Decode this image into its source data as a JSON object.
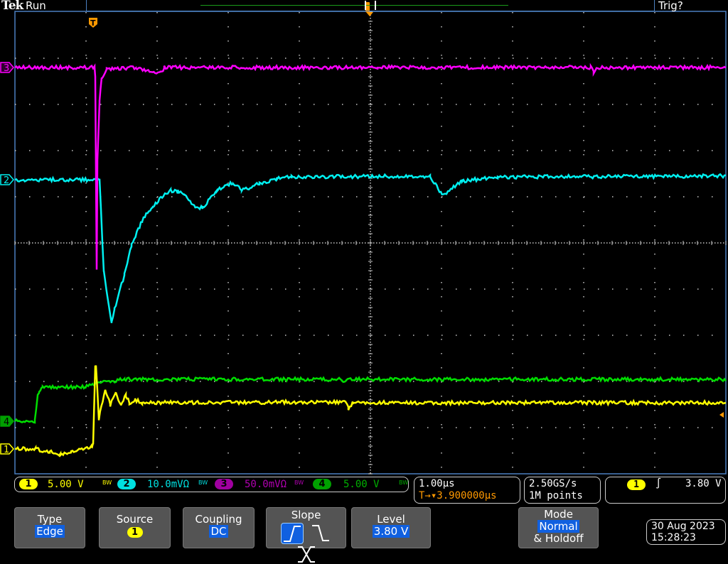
{
  "header": {
    "brand": "Tek",
    "run_state": "Run",
    "trigger_state": "Trig?"
  },
  "markers": {
    "trigger_position": "T",
    "ch1": "1",
    "ch2": "2",
    "ch3": "3",
    "ch4": "4"
  },
  "colors": {
    "ch1": "#ffff00",
    "ch2": "#00f0f0",
    "ch3": "#ff00ff",
    "ch4": "#00dd00",
    "trigger": "#ff9900",
    "highlight": "#1060e0",
    "grid": "#c8c8c8",
    "frame": "#4a7fc0"
  },
  "channels": [
    {
      "id": "1",
      "scale": "5.00 V",
      "bw": "BW",
      "color": "#ffff00"
    },
    {
      "id": "2",
      "scale": "10.0mVΩ",
      "bw": "BW",
      "color": "#00f0f0"
    },
    {
      "id": "3",
      "scale": "50.0mVΩ",
      "bw": "BW",
      "color": "#a000a0"
    },
    {
      "id": "4",
      "scale": "5.00 V",
      "bw": "BW",
      "color": "#00b000"
    }
  ],
  "horizontal": {
    "scale": "1.00µs",
    "position": "3.900000µs",
    "position_prefix": "T→▾"
  },
  "acquisition": {
    "sample_rate": "2.50GS/s",
    "record_length": "1M points"
  },
  "trigger": {
    "source": "1",
    "slope_icon": "rising-edge-icon",
    "level": "3.80 V"
  },
  "menu": {
    "type": {
      "label": "Type",
      "value": "Edge"
    },
    "source": {
      "label": "Source",
      "value": "1"
    },
    "coupling": {
      "label": "Coupling",
      "value": "DC"
    },
    "slope": {
      "label": "Slope",
      "options": [
        "rising",
        "falling",
        "either"
      ],
      "selected": "rising"
    },
    "level": {
      "label": "Level",
      "value": "3.80 V"
    },
    "mode": {
      "label": "Mode",
      "value": "Normal",
      "sub": "& Holdoff"
    }
  },
  "datetime": {
    "date": "30 Aug 2023",
    "time": "15:28:23"
  },
  "waveforms": {
    "time_unit": "µs",
    "ch3": {
      "volts_per_div": 0.05,
      "points": [
        [
          -1.1,
          0
        ],
        [
          0.02,
          0
        ],
        [
          0.03,
          -0.01
        ],
        [
          0.05,
          -0.219
        ],
        [
          0.06,
          -0.1
        ],
        [
          0.09,
          -0.037
        ],
        [
          0.12,
          -0.011
        ],
        [
          0.19,
          -0.002
        ],
        [
          0.6,
          0
        ],
        [
          0.95,
          -0.006
        ],
        [
          1.0,
          0
        ],
        [
          4.0,
          0
        ],
        [
          7.0,
          0
        ],
        [
          7.04,
          -0.005
        ],
        [
          7.08,
          0
        ],
        [
          8.9,
          0
        ]
      ]
    },
    "ch2": {
      "volts_per_div": 0.01,
      "points": [
        [
          -1.1,
          0
        ],
        [
          0.09,
          0
        ],
        [
          0.15,
          -0.02
        ],
        [
          0.26,
          -0.0311
        ],
        [
          0.3,
          -0.028
        ],
        [
          0.44,
          -0.0206
        ],
        [
          0.54,
          -0.0142
        ],
        [
          0.69,
          -0.0088
        ],
        [
          0.84,
          -0.0057
        ],
        [
          0.99,
          -0.0034
        ],
        [
          1.09,
          -0.0023
        ],
        [
          1.19,
          -0.0026
        ],
        [
          1.29,
          -0.0034
        ],
        [
          1.44,
          -0.006
        ],
        [
          1.54,
          -0.006
        ],
        [
          1.64,
          -0.0042
        ],
        [
          1.74,
          -0.0023
        ],
        [
          1.89,
          -0.0011
        ],
        [
          1.97,
          -0.0006
        ],
        [
          2.09,
          -0.0023
        ],
        [
          2.19,
          -0.0018
        ],
        [
          2.34,
          -0.0008
        ],
        [
          2.59,
          0.0002
        ],
        [
          2.79,
          0.0006
        ],
        [
          4.74,
          0.0008
        ],
        [
          4.91,
          -0.0034
        ],
        [
          5.19,
          -0.0003
        ],
        [
          5.69,
          0.0006
        ],
        [
          8.9,
          0.0008
        ]
      ]
    },
    "ch4": {
      "volts_per_div": 5,
      "points": [
        [
          -1.1,
          0
        ],
        [
          -0.82,
          0
        ],
        [
          -0.78,
          2.9
        ],
        [
          -0.76,
          3.15
        ],
        [
          -0.71,
          3.69
        ],
        [
          -0.11,
          3.69
        ],
        [
          -0.01,
          4.0
        ],
        [
          0.44,
          4.54
        ],
        [
          3.5,
          4.54
        ],
        [
          3.52,
          4.1
        ],
        [
          3.56,
          4.54
        ],
        [
          8.9,
          4.54
        ]
      ]
    },
    "ch1": {
      "volts_per_div": 5,
      "points": [
        [
          -1.1,
          0
        ],
        [
          -0.81,
          0
        ],
        [
          -0.61,
          -0.31
        ],
        [
          -0.46,
          -0.62
        ],
        [
          -0.31,
          -0.38
        ],
        [
          -0.16,
          -0.08
        ],
        [
          -0.03,
          0.15
        ],
        [
          0.0,
          0.5
        ],
        [
          0.03,
          9.0
        ],
        [
          0.04,
          9.0
        ],
        [
          0.08,
          3.23
        ],
        [
          0.17,
          6.46
        ],
        [
          0.24,
          4.77
        ],
        [
          0.32,
          6.23
        ],
        [
          0.39,
          4.62
        ],
        [
          0.46,
          5.85
        ],
        [
          0.51,
          5.0
        ],
        [
          0.59,
          5.31
        ],
        [
          0.69,
          5.0
        ],
        [
          3.55,
          5.08
        ],
        [
          3.59,
          4.38
        ],
        [
          3.65,
          5.0
        ],
        [
          8.9,
          5.0
        ]
      ]
    }
  }
}
